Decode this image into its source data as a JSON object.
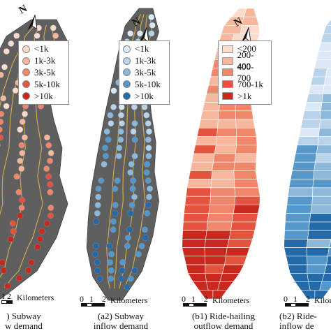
{
  "north_label": "N",
  "colors": {
    "land": "#5f5f5f",
    "subway_line": "#e3b54a",
    "outflow_scale": [
      "#fadbcc",
      "#f6b79c",
      "#f0876a",
      "#e4533d",
      "#c8281e"
    ],
    "inflow_scale": [
      "#dbe8f5",
      "#b9d3ea",
      "#8db8da",
      "#5698c9",
      "#2469a8"
    ]
  },
  "panels": [
    {
      "id": "a1",
      "caption_line1": ") Subway",
      "caption_line2": "w demand",
      "legend": [
        "<1k",
        "1k-3k",
        "3k-5k",
        "5k-10k",
        ">10k"
      ],
      "scale": {
        "ticks": [
          "1",
          "2"
        ],
        "unit": "Kilometers"
      }
    },
    {
      "id": "a2",
      "caption_line1": "(a2) Subway",
      "caption_line2": "inflow demand",
      "legend": [
        "<1k",
        "1k-3k",
        "3k-5k",
        "5k-10k",
        ">10k"
      ],
      "scale": {
        "ticks": [
          "0",
          "1",
          "2"
        ],
        "unit": "Kilometers"
      }
    },
    {
      "id": "b1",
      "caption_line1": "(b1) Ride-hailing",
      "caption_line2": "outflow demand",
      "legend": [
        "<200",
        "200-400",
        "400-700",
        "700-1k",
        ">1k"
      ],
      "scale": {
        "ticks": [
          "0",
          "1",
          "2"
        ],
        "unit": "Kilometers"
      }
    },
    {
      "id": "b2",
      "caption_line1": "(b2) Ride-",
      "caption_line2": "inflow de",
      "legend": [],
      "scale": {
        "ticks": [
          "0",
          "1",
          "2"
        ],
        "unit": "Kilometers"
      }
    }
  ]
}
